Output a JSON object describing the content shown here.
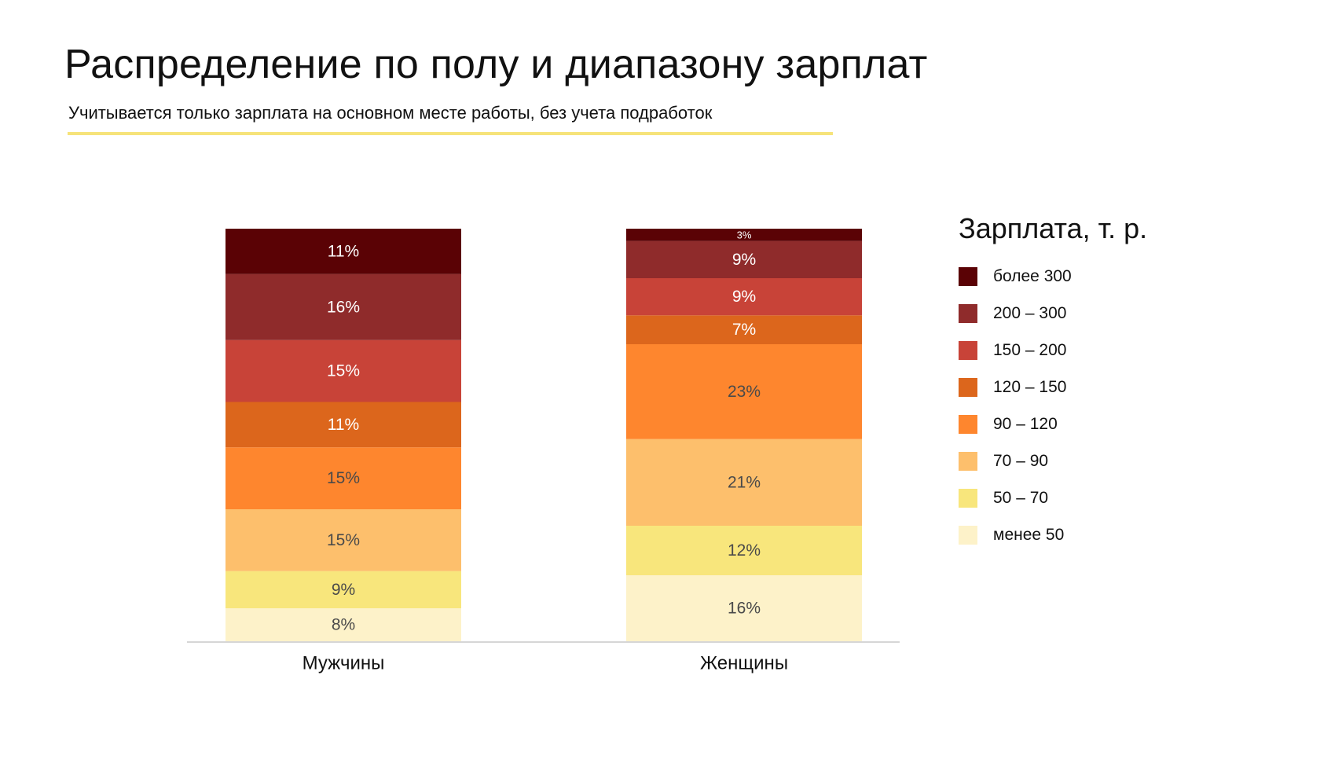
{
  "title": "Распределение по полу и диапазону зарплат",
  "subtitle": "Учитывается только зарплата на основном месте работы, без учета подработок",
  "colors": {
    "underline": "#f6e37a",
    "axis": "#d6d6d6",
    "label_light": "#ffffff",
    "label_dark": "#4a4a4a"
  },
  "chart_data": {
    "type": "bar",
    "stacked": true,
    "orientation": "vertical",
    "categories": [
      "Мужчины",
      "Женщины"
    ],
    "legend_title": "Зарплата, т. р.",
    "legend_position": "right",
    "series": [
      {
        "name": "менее 50",
        "color": "#fdf2c9",
        "values": [
          8,
          16
        ],
        "labels": [
          "8%",
          "16%"
        ]
      },
      {
        "name": "50 – 70",
        "color": "#f8e67c",
        "values": [
          9,
          12
        ],
        "labels": [
          "9%",
          "12%"
        ]
      },
      {
        "name": "70 – 90",
        "color": "#fdbf6c",
        "values": [
          15,
          21
        ],
        "labels": [
          "15%",
          "21%"
        ]
      },
      {
        "name": "90 – 120",
        "color": "#fe862e",
        "values": [
          15,
          23
        ],
        "labels": [
          "15%",
          "23%"
        ]
      },
      {
        "name": "120 – 150",
        "color": "#dc661c",
        "values": [
          11,
          7
        ],
        "labels": [
          "11%",
          "7%"
        ]
      },
      {
        "name": "150 – 200",
        "color": "#c84338",
        "values": [
          15,
          9
        ],
        "labels": [
          "15%",
          "9%"
        ]
      },
      {
        "name": "200 – 300",
        "color": "#8f2b2b",
        "values": [
          16,
          9
        ],
        "labels": [
          "16%",
          "9%"
        ]
      },
      {
        "name": "более 300",
        "color": "#5a0205",
        "values": [
          11,
          3
        ],
        "labels": [
          "11%",
          "3%"
        ]
      }
    ],
    "ylim": [
      0,
      100
    ],
    "grid": false
  }
}
